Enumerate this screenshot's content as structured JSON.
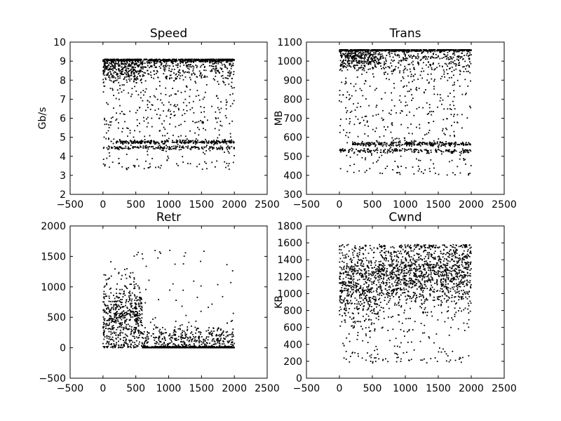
{
  "chart_data": [
    {
      "type": "scatter",
      "title": "Speed",
      "xlabel": "",
      "ylabel": "Gb/s",
      "xlim": [
        -500,
        2500
      ],
      "ylim": [
        2,
        10
      ],
      "xticks": [
        -500,
        0,
        500,
        1000,
        1500,
        2000,
        2500
      ],
      "yticks": [
        2,
        3,
        4,
        5,
        6,
        7,
        8,
        9,
        10
      ],
      "grid": false,
      "marker_color": "#000000",
      "point_count": 2000,
      "x_range": [
        0,
        2000
      ],
      "clusters": [
        {
          "x": [
            0,
            600
          ],
          "y_center": 8.6,
          "y_spread": 0.35,
          "share": 0.15
        },
        {
          "x": [
            0,
            2000
          ],
          "y_center": 9.05,
          "y_spread": 0.05,
          "share": 0.25
        },
        {
          "x": [
            600,
            2000
          ],
          "y_center": 8.6,
          "y_spread": 0.35,
          "share": 0.12
        },
        {
          "x": [
            200,
            2000
          ],
          "y_center": 4.75,
          "y_spread": 0.05,
          "share": 0.14
        },
        {
          "x": [
            0,
            2000
          ],
          "y_center": 4.45,
          "y_spread": 0.05,
          "share": 0.09
        },
        {
          "x": [
            0,
            2000
          ],
          "y_center": 6.5,
          "y_spread": 2.2,
          "share": 0.25
        }
      ],
      "y_min_observed": 3.3,
      "y_max_observed": 9.1
    },
    {
      "type": "scatter",
      "title": "Trans",
      "xlabel": "",
      "ylabel": "MB",
      "xlim": [
        -500,
        2500
      ],
      "ylim": [
        300,
        1100
      ],
      "xticks": [
        -500,
        0,
        500,
        1000,
        1500,
        2000,
        2500
      ],
      "yticks": [
        300,
        400,
        500,
        600,
        700,
        800,
        900,
        1000,
        1100
      ],
      "grid": false,
      "marker_color": "#000000",
      "point_count": 2000,
      "x_range": [
        0,
        2000
      ],
      "clusters": [
        {
          "x": [
            0,
            600
          ],
          "y_center": 1010,
          "y_spread": 30,
          "share": 0.15
        },
        {
          "x": [
            0,
            2000
          ],
          "y_center": 1058,
          "y_spread": 4,
          "share": 0.25
        },
        {
          "x": [
            600,
            2000
          ],
          "y_center": 1000,
          "y_spread": 40,
          "share": 0.12
        },
        {
          "x": [
            200,
            2000
          ],
          "y_center": 565,
          "y_spread": 6,
          "share": 0.14
        },
        {
          "x": [
            0,
            2000
          ],
          "y_center": 530,
          "y_spread": 6,
          "share": 0.09
        },
        {
          "x": [
            0,
            2000
          ],
          "y_center": 780,
          "y_spread": 260,
          "share": 0.25
        }
      ],
      "y_min_observed": 400,
      "y_max_observed": 1060
    },
    {
      "type": "scatter",
      "title": "Retr",
      "xlabel": "",
      "ylabel": "",
      "xlim": [
        -500,
        2500
      ],
      "ylim": [
        -500,
        2000
      ],
      "xticks": [
        -500,
        0,
        500,
        1000,
        1500,
        2000,
        2500
      ],
      "yticks": [
        -500,
        0,
        500,
        1000,
        1500,
        2000
      ],
      "grid": false,
      "marker_color": "#000000",
      "point_count": 2000,
      "x_range": [
        0,
        2000
      ],
      "clusters": [
        {
          "x": [
            0,
            600
          ],
          "y_center": 450,
          "y_spread": 300,
          "share": 0.3
        },
        {
          "x": [
            600,
            2000
          ],
          "y_center": 0,
          "y_spread": 10,
          "share": 0.45
        },
        {
          "x": [
            600,
            2000
          ],
          "y_center": 120,
          "y_spread": 120,
          "share": 0.22
        },
        {
          "x": [
            0,
            2000
          ],
          "y_center": 900,
          "y_spread": 500,
          "share": 0.03
        }
      ],
      "y_min_observed": 0,
      "y_max_observed": 1600
    },
    {
      "type": "scatter",
      "title": "Cwnd",
      "xlabel": "",
      "ylabel": "KB",
      "xlim": [
        -500,
        2500
      ],
      "ylim": [
        0,
        1800
      ],
      "xticks": [
        -500,
        0,
        500,
        1000,
        1500,
        2000,
        2500
      ],
      "yticks": [
        0,
        200,
        400,
        600,
        800,
        1000,
        1200,
        1400,
        1600,
        1800
      ],
      "grid": false,
      "marker_color": "#000000",
      "point_count": 2000,
      "x_range": [
        0,
        2000
      ],
      "clusters": [
        {
          "x": [
            0,
            600
          ],
          "y_center": 1100,
          "y_spread": 250,
          "share": 0.28
        },
        {
          "x": [
            600,
            2000
          ],
          "y_center": 1250,
          "y_spread": 200,
          "share": 0.62
        },
        {
          "x": [
            0,
            2000
          ],
          "y_center": 600,
          "y_spread": 350,
          "share": 0.1
        }
      ],
      "y_min_observed": 180,
      "y_max_observed": 1580
    }
  ]
}
